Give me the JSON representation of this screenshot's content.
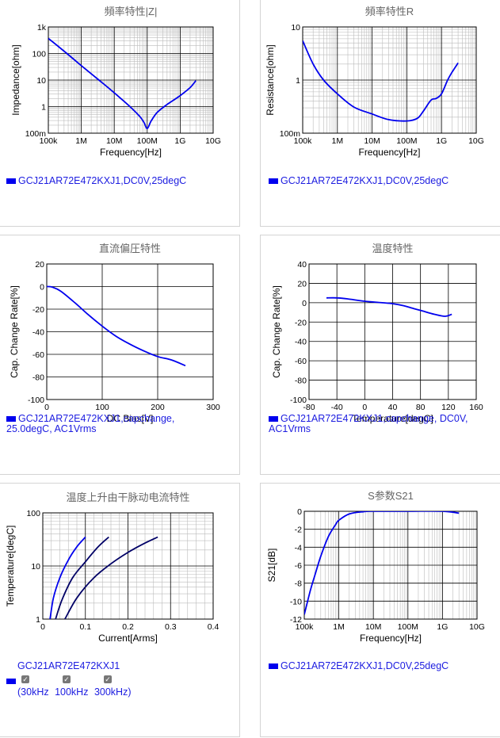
{
  "colors": {
    "grid_major": "#000000",
    "grid_minor": "#bbbbbb",
    "line_blue": "#0000ee",
    "line_navy": "#000066",
    "legend_text": "#1c1ce0"
  },
  "chart_data": [
    {
      "id": "impedance",
      "type": "line",
      "title": "頻率特性|Z|",
      "xlabel": "Frequency[Hz]",
      "ylabel": "Impedance[ohm]",
      "xscale": "log",
      "yscale": "log",
      "xlim": [
        100000,
        10000000000
      ],
      "ylim": [
        0.1,
        1000
      ],
      "xticks": [
        100000,
        1000000,
        10000000,
        100000000,
        1000000000,
        10000000000
      ],
      "xtick_labels": [
        "100k",
        "1M",
        "10M",
        "100M",
        "1G",
        "10G"
      ],
      "yticks": [
        0.1,
        1,
        10,
        100,
        1000
      ],
      "ytick_labels": [
        "100m",
        "1",
        "10",
        "100",
        "1k"
      ],
      "series": [
        {
          "color": "#0000ee",
          "x": [
            100000,
            300000,
            1000000,
            3000000,
            10000000,
            30000000,
            60000000,
            80000000,
            100000000,
            130000000,
            200000000,
            400000000,
            1000000000,
            2000000000,
            3000000000
          ],
          "y": [
            370,
            123,
            35,
            11.5,
            3.3,
            1.0,
            0.42,
            0.25,
            0.15,
            0.28,
            0.6,
            1.2,
            2.6,
            5.2,
            9.5
          ]
        }
      ],
      "legend": [
        "GCJ21AR72E472KXJ1,DC0V,25degC"
      ]
    },
    {
      "id": "resistance",
      "type": "line",
      "title": "頻率特性R",
      "xlabel": "Frequency[Hz]",
      "ylabel": "Resistance[ohm]",
      "xscale": "log",
      "yscale": "log",
      "xlim": [
        100000,
        10000000000
      ],
      "ylim": [
        0.1,
        10
      ],
      "xticks": [
        100000,
        1000000,
        10000000,
        100000000,
        1000000000,
        10000000000
      ],
      "xtick_labels": [
        "100k",
        "1M",
        "10M",
        "100M",
        "1G",
        "10G"
      ],
      "yticks": [
        0.1,
        1,
        10
      ],
      "ytick_labels": [
        "100m",
        "1",
        "10"
      ],
      "series": [
        {
          "color": "#0000ee",
          "x": [
            100000,
            200000,
            400000,
            1000000,
            3000000,
            10000000,
            30000000,
            100000000,
            200000000,
            300000000,
            500000000,
            700000000,
            1000000000,
            1500000000,
            2000000000,
            3000000000
          ],
          "y": [
            5.5,
            2.0,
            1.0,
            0.55,
            0.31,
            0.23,
            0.18,
            0.17,
            0.19,
            0.26,
            0.42,
            0.45,
            0.55,
            1.0,
            1.4,
            2.1
          ]
        }
      ],
      "legend": [
        "GCJ21AR72E472KXJ1,DC0V,25degC"
      ]
    },
    {
      "id": "dcbias",
      "type": "line",
      "title": "直流偏圧特性",
      "xlabel": "DC Bias[V]",
      "ylabel": "Cap. Change Rate[%]",
      "xscale": "linear",
      "yscale": "linear",
      "xlim": [
        0,
        300
      ],
      "ylim": [
        -100,
        20
      ],
      "xticks": [
        0,
        100,
        200,
        300
      ],
      "xtick_labels": [
        "0",
        "100",
        "200",
        "300"
      ],
      "yticks": [
        -100,
        -80,
        -60,
        -40,
        -20,
        0,
        20
      ],
      "ytick_labels": [
        "-100",
        "-80",
        "-60",
        "-40",
        "-20",
        "0",
        "20"
      ],
      "series": [
        {
          "color": "#0000ee",
          "x": [
            0,
            10,
            25,
            50,
            75,
            100,
            125,
            150,
            175,
            200,
            225,
            250
          ],
          "y": [
            0,
            -0.5,
            -4,
            -14,
            -25,
            -35,
            -44,
            -51,
            -57,
            -62,
            -65,
            -70
          ]
        }
      ],
      "legend": [
        "GCJ21AR72E472KXJ1,capchange,",
        "25.0degC, AC1Vrms"
      ]
    },
    {
      "id": "temperature",
      "type": "line",
      "title": "温度特性",
      "xlabel": "Temperature[degC]",
      "ylabel": "Cap. Change Rate[%]",
      "xscale": "linear",
      "yscale": "linear",
      "xlim": [
        -80,
        160
      ],
      "ylim": [
        -100,
        40
      ],
      "xticks": [
        -80,
        -40,
        0,
        40,
        80,
        120,
        160
      ],
      "xtick_labels": [
        "-80",
        "-40",
        "0",
        "40",
        "80",
        "120",
        "160"
      ],
      "yticks": [
        -100,
        -80,
        -60,
        -40,
        -20,
        0,
        20,
        40
      ],
      "ytick_labels": [
        "-100",
        "-80",
        "-60",
        "-40",
        "-20",
        "0",
        "20",
        "40"
      ],
      "series": [
        {
          "color": "#0000ee",
          "x": [
            -55,
            -40,
            -25,
            0,
            25,
            40,
            55,
            70,
            85,
            100,
            115,
            125
          ],
          "y": [
            5,
            5,
            4,
            1.5,
            0,
            -1,
            -3,
            -6,
            -9,
            -12,
            -14,
            -12
          ]
        }
      ],
      "legend": [
        "GCJ21AR72E472KXJ1,capchange, DC0V,",
        "AC1Vrms"
      ]
    },
    {
      "id": "heating",
      "type": "line",
      "title": "温度上升由干脉动电流特性",
      "xlabel": "Current[Arms]",
      "ylabel": "Temperature[degC]",
      "xscale": "linear",
      "yscale": "log",
      "xlim": [
        0,
        0.4
      ],
      "ylim": [
        1,
        100
      ],
      "xticks": [
        0,
        0.1,
        0.2,
        0.3,
        0.4
      ],
      "xtick_labels": [
        "0",
        "0.1",
        "0.2",
        "0.3",
        "0.4"
      ],
      "yticks": [
        1,
        10,
        100
      ],
      "ytick_labels": [
        "1",
        "10",
        "100"
      ],
      "series": [
        {
          "color": "#0000ee",
          "x": [
            0.017,
            0.025,
            0.04,
            0.06,
            0.08,
            0.1
          ],
          "y": [
            1,
            2.5,
            6,
            13,
            23,
            35
          ]
        },
        {
          "color": "#000066",
          "x": [
            0.03,
            0.045,
            0.07,
            0.1,
            0.13,
            0.155
          ],
          "y": [
            1,
            2.3,
            6,
            12,
            23,
            35
          ]
        },
        {
          "color": "#000066",
          "x": [
            0.052,
            0.08,
            0.12,
            0.16,
            0.2,
            0.24,
            0.27
          ],
          "y": [
            1,
            2.5,
            6,
            11,
            18,
            27,
            35
          ]
        }
      ],
      "legend": [
        "GCJ21AR72E472KXJ1"
      ],
      "frequency_labels": [
        "(30kHz",
        "100kHz",
        "300kHz)"
      ]
    },
    {
      "id": "s21",
      "type": "line",
      "title": "S参数S21",
      "xlabel": "Frequency[Hz]",
      "ylabel": "S21[dB]",
      "xscale": "log",
      "yscale": "linear",
      "xlim": [
        100000,
        10000000000
      ],
      "ylim": [
        -12,
        0
      ],
      "xticks": [
        100000,
        1000000,
        10000000,
        100000000,
        1000000000,
        10000000000
      ],
      "xtick_labels": [
        "100k",
        "1M",
        "10M",
        "100M",
        "1G",
        "10G"
      ],
      "yticks": [
        -12,
        -10,
        -8,
        -6,
        -4,
        -2,
        0
      ],
      "ytick_labels": [
        "-12",
        "-10",
        "-8",
        "-6",
        "-4",
        "-2",
        "0"
      ],
      "series": [
        {
          "color": "#0000ee",
          "x": [
            100000,
            150000,
            200000,
            300000,
            500000,
            800000,
            1000000,
            2000000,
            5000000,
            10000000,
            100000000,
            1000000000,
            3000000000
          ],
          "y": [
            -11.5,
            -8.8,
            -7.2,
            -5.0,
            -2.8,
            -1.5,
            -1.0,
            -0.3,
            -0.05,
            0,
            0,
            0,
            -0.2
          ]
        }
      ],
      "legend": [
        "GCJ21AR72E472KXJ1,DC0V,25degC"
      ]
    }
  ]
}
